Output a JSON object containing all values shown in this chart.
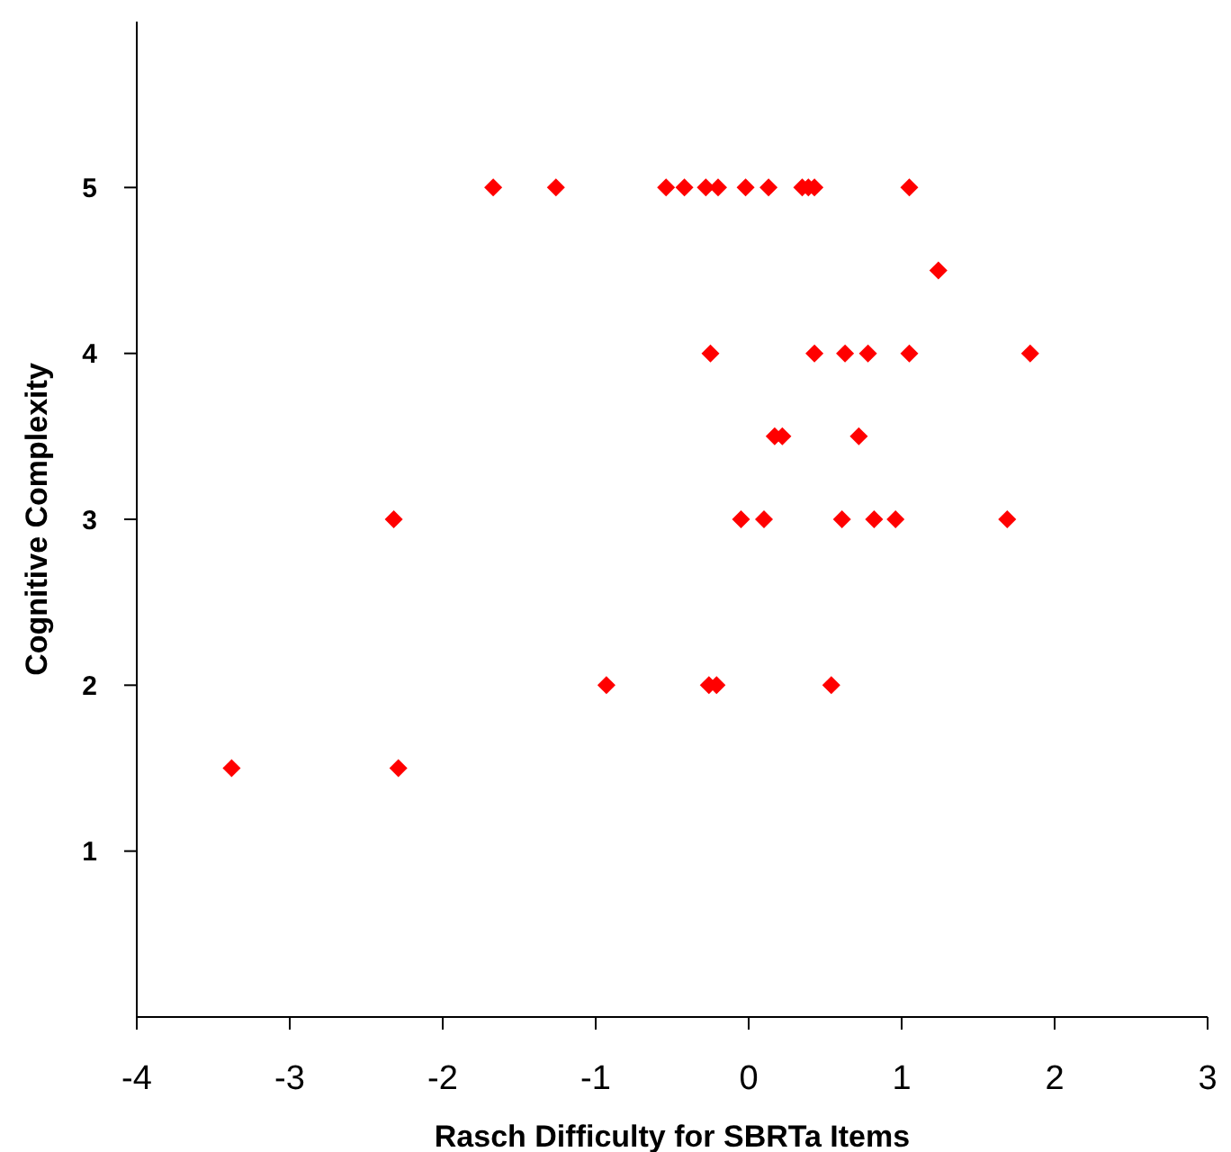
{
  "chart_data": {
    "type": "scatter",
    "xlabel": "Rasch Difficulty for SBRTa Items",
    "ylabel": "Cognitive Complexity",
    "xlim": [
      -4,
      3
    ],
    "xticks": [
      -4,
      -3,
      -2,
      -1,
      0,
      1,
      2,
      3
    ],
    "ylim": [
      0,
      6
    ],
    "yticks": [
      1,
      2,
      3,
      4,
      5
    ],
    "marker": "diamond",
    "grid": false,
    "series": [
      {
        "color": "#ff0000",
        "x": [
          -1.67,
          -1.26,
          -0.54,
          -0.42,
          -0.28,
          -0.2,
          -0.02,
          0.13,
          0.35,
          0.39,
          0.43,
          1.05,
          1.24,
          -0.25,
          0.43,
          0.63,
          0.78,
          1.05,
          1.84,
          0.17,
          0.22,
          0.72,
          -2.32,
          -0.05,
          0.1,
          0.61,
          0.82,
          0.96,
          1.69,
          -0.93,
          -0.26,
          -0.21,
          0.54,
          -3.38,
          -2.29
        ],
        "values": [
          5,
          5,
          5,
          5,
          5,
          5,
          5,
          5,
          5,
          5,
          5,
          5,
          4.5,
          4,
          4,
          4,
          4,
          4,
          4,
          3.5,
          3.5,
          3.5,
          3,
          3,
          3,
          3,
          3,
          3,
          3,
          2,
          2,
          2,
          2,
          1.5,
          1.5
        ]
      }
    ]
  }
}
